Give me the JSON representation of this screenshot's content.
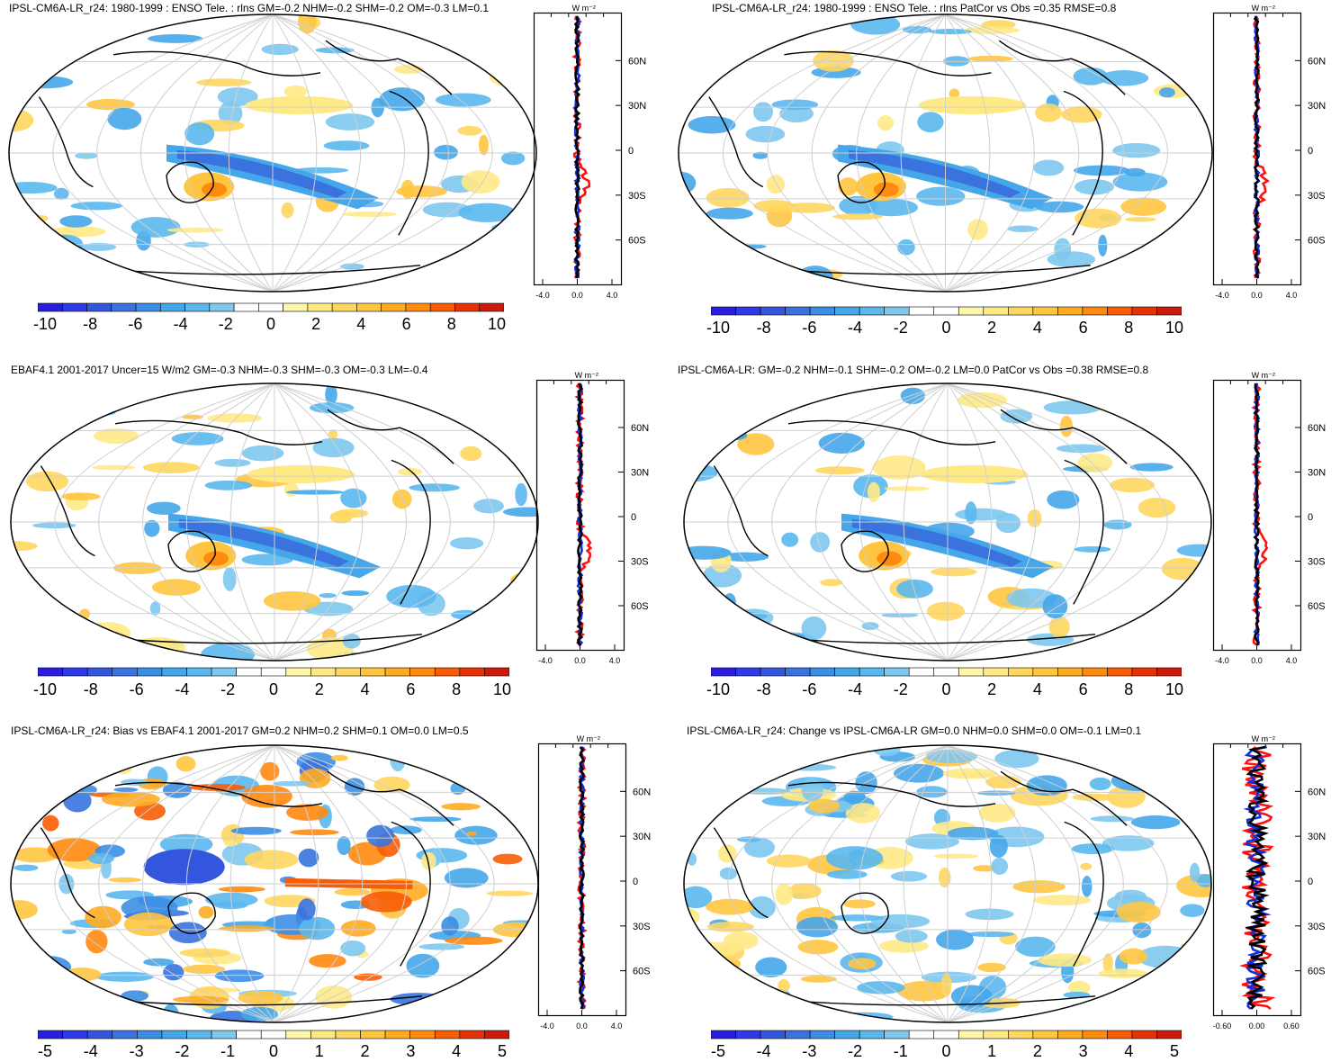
{
  "units_label": "W m⁻²",
  "lat_ticks": [
    "60N",
    "30N",
    "0",
    "30S",
    "60S"
  ],
  "colors": {
    "cool": [
      "#2b1de0",
      "#2e3ae6",
      "#3356dc",
      "#3a73de",
      "#3c8ee4",
      "#45a6ea",
      "#5ab8ee",
      "#7ec8ee"
    ],
    "neutral": [
      "#ffffff",
      "#ffffff"
    ],
    "warm": [
      "#fff6a8",
      "#ffe985",
      "#ffd65f",
      "#ffc540",
      "#ffab22",
      "#ff8a10",
      "#f85d06",
      "#e63305",
      "#cc1b0b"
    ],
    "line_red": "#ff1010",
    "line_blue": "#1030e0",
    "line_black": "#000000",
    "grid": "#cfcfcf"
  },
  "panels": [
    {
      "id": "p1",
      "title": "IPSL-CM6A-LR_r24: 1980-1999 : ENSO Tele. : rlns GM=-0.2 NHM=-0.2 SHM=-0.2 OM=-0.3 LM=0.1",
      "colorbar_labels": [
        "-10",
        "-8",
        "-6",
        "-4",
        "-2",
        "0",
        "2",
        "4",
        "6",
        "8",
        "10"
      ],
      "profile_xticks": [
        "-4.0",
        "0.0",
        "4.0"
      ]
    },
    {
      "id": "p2",
      "title": "IPSL-CM6A-LR_r24: 1980-1999 : ENSO Tele. : rlns PatCor vs Obs =0.35 RMSE=0.8",
      "colorbar_labels": [
        "-10",
        "-8",
        "-6",
        "-4",
        "-2",
        "0",
        "2",
        "4",
        "6",
        "8",
        "10"
      ],
      "profile_xticks": [
        "-4.0",
        "0.0",
        "4.0"
      ]
    },
    {
      "id": "p3",
      "title": "EBAF4.1 2001-2017 Uncer=15 W/m2 GM=-0.3 NHM=-0.3 SHM=-0.3 OM=-0.3 LM=-0.4",
      "colorbar_labels": [
        "-10",
        "-8",
        "-6",
        "-4",
        "-2",
        "0",
        "2",
        "4",
        "6",
        "8",
        "10"
      ],
      "profile_xticks": [
        "-4.0",
        "0.0",
        "4.0"
      ]
    },
    {
      "id": "p4",
      "title": "IPSL-CM6A-LR: GM=-0.2 NHM=-0.1 SHM=-0.2 OM=-0.2 LM=0.0 PatCor vs Obs =0.38 RMSE=0.8",
      "colorbar_labels": [
        "-10",
        "-8",
        "-6",
        "-4",
        "-2",
        "0",
        "2",
        "4",
        "6",
        "8",
        "10"
      ],
      "profile_xticks": [
        "-4.0",
        "0.0",
        "4.0"
      ]
    },
    {
      "id": "p5",
      "title": "IPSL-CM6A-LR_r24: Bias vs EBAF4.1 2001-2017 GM=0.2 NHM=0.2 SHM=0.1 OM=0.0 LM=0.5",
      "colorbar_labels": [
        "-5",
        "-4",
        "-3",
        "-2",
        "-1",
        "0",
        "1",
        "2",
        "3",
        "4",
        "5"
      ],
      "profile_xticks": [
        "-4.0",
        "0.0",
        "4.0"
      ]
    },
    {
      "id": "p6",
      "title": "IPSL-CM6A-LR_r24: Change vs IPSL-CM6A-LR GM=0.0 NHM=0.0 SHM=0.0 OM=-0.1 LM=0.1",
      "colorbar_labels": [
        "-5",
        "-4",
        "-3",
        "-2",
        "-1",
        "0",
        "1",
        "2",
        "3",
        "4",
        "5"
      ],
      "profile_xticks": [
        "-0.60",
        "0.00",
        "0.60"
      ]
    }
  ]
}
